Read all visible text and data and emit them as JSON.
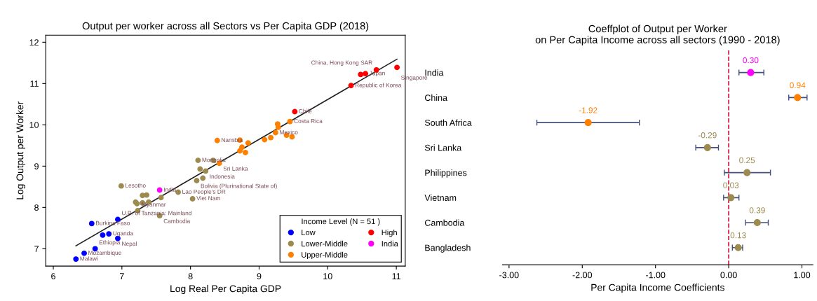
{
  "chart_data": [
    {
      "type": "scatter",
      "title": "Output per worker across all Sectors vs Per Capita GDP (2018)",
      "xlabel": "Log Real Per Capita GDP",
      "ylabel": "Log Output per Worker",
      "xlim": [
        5.89,
        11.13
      ],
      "ylim": [
        6.58,
        12.17
      ],
      "xticks": [
        6,
        7,
        8,
        9,
        10,
        11
      ],
      "yticks": [
        7,
        8,
        9,
        10,
        11,
        12
      ],
      "legend": "bottom right",
      "legend_title": "Income Level (N = 51 )",
      "marker": "circle",
      "grid": false,
      "series": [
        {
          "name": "Low",
          "color": "#0000ff",
          "x": [
            6.33,
            6.45,
            6.61,
            6.56,
            6.72,
            6.81,
            6.94,
            6.94
          ],
          "values": [
            6.75,
            6.89,
            7.0,
            7.61,
            7.33,
            7.36,
            7.25,
            7.71
          ]
        },
        {
          "name": "Lower-Middle",
          "color": "#9c8a4e",
          "x": [
            6.99,
            7.3,
            7.36,
            7.2,
            7.22,
            7.3,
            7.39,
            7.57,
            7.23,
            7.55,
            7.82,
            8.03,
            8.11,
            8.33,
            8.14,
            8.22,
            8.18,
            8.09
          ],
          "values": [
            8.52,
            8.29,
            8.3,
            8.13,
            8.09,
            8.11,
            8.13,
            8.24,
            7.92,
            7.8,
            8.37,
            8.21,
            9.14,
            9.14,
            8.93,
            8.88,
            8.71,
            8.65
          ]
        },
        {
          "name": "Upper-Middle",
          "color": "#ff7f00",
          "x": [
            8.39,
            8.42,
            8.72,
            8.84,
            9.08,
            9.17,
            8.75,
            8.72,
            8.8,
            9.27,
            9.28,
            9.24,
            9.4,
            9.48,
            9.45
          ],
          "values": [
            9.62,
            9.07,
            9.63,
            9.56,
            9.64,
            9.69,
            9.46,
            9.37,
            9.33,
            10.02,
            9.94,
            9.81,
            9.75,
            9.71,
            10.08
          ]
        },
        {
          "name": "High",
          "color": "#ff0000",
          "x": [
            9.52,
            10.34,
            10.48,
            10.55,
            10.71,
            11.01
          ],
          "values": [
            10.32,
            10.95,
            11.22,
            11.24,
            11.33,
            11.39
          ]
        },
        {
          "name": "India",
          "color": "#ff00ff",
          "x": [
            7.55
          ],
          "values": [
            8.42
          ]
        },
        {
          "type": "line",
          "marker": "none",
          "color": "#222222",
          "x": [
            6.33,
            11.01
          ],
          "values": [
            7.07,
            11.59
          ]
        }
      ],
      "annotations": [
        {
          "text": "Malawi",
          "x": 6.33,
          "y": 6.75
        },
        {
          "text": "Mozambique",
          "x": 6.45,
          "y": 6.89
        },
        {
          "text": "Ethiopia",
          "x": 6.61,
          "y": 7.0
        },
        {
          "text": "Burkina Faso",
          "x": 6.56,
          "y": 7.61
        },
        {
          "text": "Uganda",
          "x": 6.81,
          "y": 7.36
        },
        {
          "text": "Nepal",
          "x": 6.94,
          "y": 7.25
        },
        {
          "text": "U.R. of Tanzania: Mainland",
          "x": 6.94,
          "y": 7.71
        },
        {
          "text": "Lesotho",
          "x": 6.99,
          "y": 8.52
        },
        {
          "text": "Myanmar",
          "x": 7.23,
          "y": 7.92
        },
        {
          "text": "Cambodia",
          "x": 7.55,
          "y": 7.8
        },
        {
          "text": "India",
          "x": 7.55,
          "y": 8.42
        },
        {
          "text": "Lao People's DR",
          "x": 7.82,
          "y": 8.37
        },
        {
          "text": "Viet Nam",
          "x": 8.03,
          "y": 8.21
        },
        {
          "text": "Mongolia",
          "x": 8.11,
          "y": 9.14
        },
        {
          "text": "Sri Lanka",
          "x": 8.42,
          "y": 9.07
        },
        {
          "text": "Indonesia",
          "x": 8.22,
          "y": 8.88
        },
        {
          "text": "Bolivia (Plurinational State of)",
          "x": 8.09,
          "y": 8.65
        },
        {
          "text": "Namibia",
          "x": 8.39,
          "y": 9.62
        },
        {
          "text": "Mexico",
          "x": 9.24,
          "y": 9.81
        },
        {
          "text": "Costa Rica",
          "x": 9.45,
          "y": 10.08
        },
        {
          "text": "Chile",
          "x": 9.52,
          "y": 10.32
        },
        {
          "text": "Republic of Korea",
          "x": 10.34,
          "y": 10.95
        },
        {
          "text": "Japan",
          "x": 10.55,
          "y": 11.24
        },
        {
          "text": "China, Hong Kong SAR",
          "x": 10.71,
          "y": 11.33
        },
        {
          "text": "Singapore",
          "x": 11.01,
          "y": 11.39
        }
      ]
    },
    {
      "type": "scatter",
      "orientation": "horizontal",
      "title": "Coeffplot of Output per Worker\non Per Capita Income across all sectors (1990 - 2018)",
      "xlabel": "Per Capita Income Coefficients",
      "categories": [
        "India",
        "China",
        "South Africa",
        "Sri Lanka",
        "Philippines",
        "Vietnam",
        "Cambodia",
        "Bangladesh"
      ],
      "xlim": [
        -3.09,
        1.15
      ],
      "xticks": [
        {
          "value": -3,
          "label": "-3.00"
        },
        {
          "value": -2,
          "label": "-2.00"
        },
        {
          "value": -1,
          "label": "-1.00"
        },
        {
          "value": 0,
          "label": "0.00"
        },
        {
          "value": 1,
          "label": "1.00"
        }
      ],
      "values": [
        0.3,
        0.94,
        -1.92,
        -0.29,
        0.25,
        0.03,
        0.39,
        0.13
      ],
      "colors": [
        "#ff00ff",
        "#ff7f00",
        "#ff7f00",
        "#9c8a4e",
        "#9c8a4e",
        "#9c8a4e",
        "#9c8a4e",
        "#9c8a4e"
      ],
      "value_labels": [
        "0.30",
        "0.94",
        "-1.92",
        "-0.29",
        "0.25",
        "0.03",
        "0.39",
        "0.13"
      ],
      "errors": [
        [
          0.14,
          0.48
        ],
        [
          0.82,
          1.07
        ],
        [
          -2.62,
          -1.22
        ],
        [
          -0.45,
          -0.14
        ],
        [
          -0.06,
          0.57
        ],
        [
          -0.07,
          0.14
        ],
        [
          0.23,
          0.54
        ],
        [
          0.05,
          0.19
        ]
      ],
      "ref_lines": [
        {
          "axis": "x",
          "value": 0,
          "color": "#d0103a",
          "line_style": "dashed"
        }
      ],
      "marker": "circle",
      "grid": false,
      "legend": false
    }
  ]
}
